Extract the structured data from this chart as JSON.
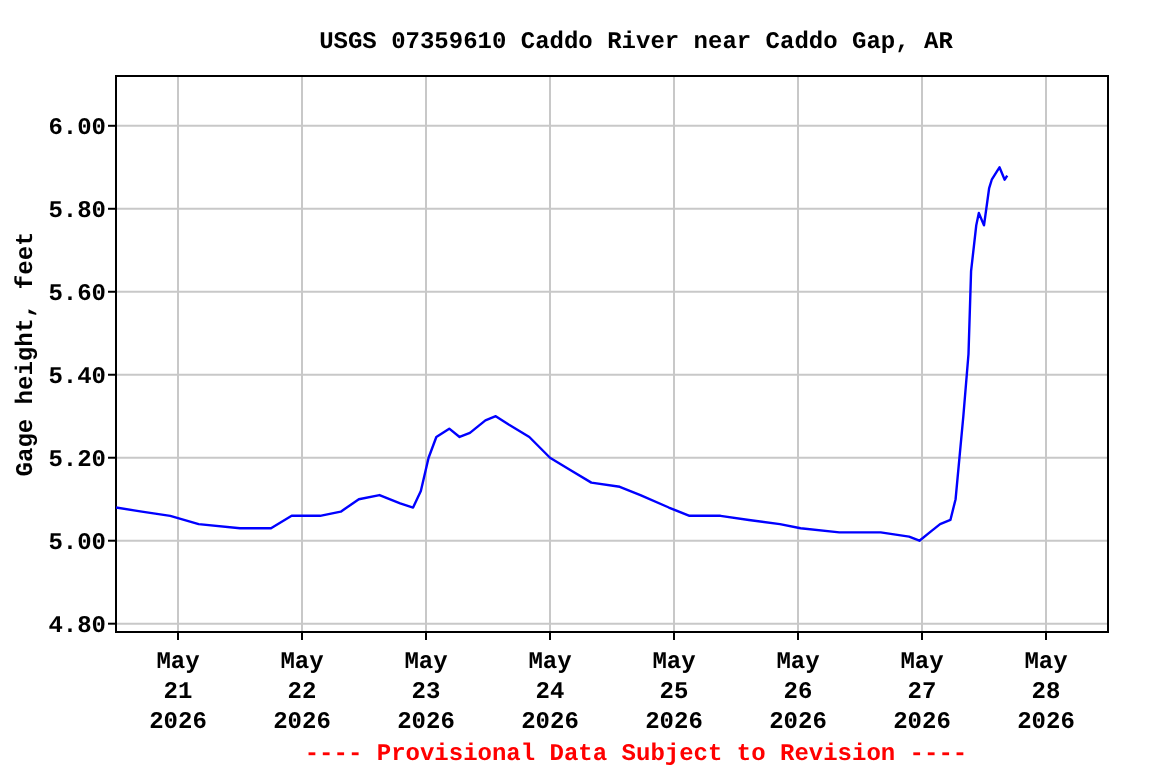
{
  "chart_data": {
    "type": "line",
    "title": "USGS 07359610 Caddo River near Caddo Gap, AR",
    "ylabel": "Gage height, feet",
    "annotations": [
      "---- Provisional Data Subject to Revision ----"
    ],
    "xlim": [
      "2026-05-20T12:00",
      "2026-05-28T12:00"
    ],
    "xticks": [
      {
        "value": "2026-05-21",
        "label": "May\n21\n2026"
      },
      {
        "value": "2026-05-22",
        "label": "May\n22\n2026"
      },
      {
        "value": "2026-05-23",
        "label": "May\n23\n2026"
      },
      {
        "value": "2026-05-24",
        "label": "May\n24\n2026"
      },
      {
        "value": "2026-05-25",
        "label": "May\n25\n2026"
      },
      {
        "value": "2026-05-26",
        "label": "May\n26\n2026"
      },
      {
        "value": "2026-05-27",
        "label": "May\n27\n2026"
      },
      {
        "value": "2026-05-28",
        "label": "May\n28\n2026"
      }
    ],
    "ylim": [
      4.78,
      6.12
    ],
    "yticks": [
      {
        "value": 4.8,
        "label": "4.80"
      },
      {
        "value": 5,
        "label": "5.00"
      },
      {
        "value": 5.2,
        "label": "5.20"
      },
      {
        "value": 5.4,
        "label": "5.40"
      },
      {
        "value": 5.6,
        "label": "5.60"
      },
      {
        "value": 5.8,
        "label": "5.80"
      },
      {
        "value": 6,
        "label": "6.00"
      }
    ],
    "grid": true,
    "marker": "none",
    "line_style": "solid",
    "x": [
      "2026-05-20T12:00",
      "2026-05-20T17:00",
      "2026-05-20T22:30",
      "2026-05-21T04:00",
      "2026-05-21T12:00",
      "2026-05-21T18:00",
      "2026-05-21T22:00",
      "2026-05-22T03:30",
      "2026-05-22T07:30",
      "2026-05-22T11:00",
      "2026-05-22T15:00",
      "2026-05-22T19:00",
      "2026-05-22T21:30",
      "2026-05-22T23:00",
      "2026-05-23T00:30",
      "2026-05-23T02:00",
      "2026-05-23T04:30",
      "2026-05-23T06:30",
      "2026-05-23T08:30",
      "2026-05-23T11:30",
      "2026-05-23T13:30",
      "2026-05-23T16:00",
      "2026-05-23T20:00",
      "2026-05-24T00:00",
      "2026-05-24T04:00",
      "2026-05-24T08:00",
      "2026-05-24T13:30",
      "2026-05-24T17:30",
      "2026-05-24T23:00",
      "2026-05-25T03:00",
      "2026-05-25T09:00",
      "2026-05-25T14:30",
      "2026-05-25T20:30",
      "2026-05-26T00:30",
      "2026-05-26T08:00",
      "2026-05-26T16:00",
      "2026-05-26T21:30",
      "2026-05-26T23:30",
      "2026-05-27T01:30",
      "2026-05-27T03:30",
      "2026-05-27T05:30",
      "2026-05-27T06:30",
      "2026-05-27T08:00",
      "2026-05-27T09:00",
      "2026-05-27T09:30",
      "2026-05-27T10:30",
      "2026-05-27T11:00",
      "2026-05-27T12:00",
      "2026-05-27T13:00",
      "2026-05-27T13:30",
      "2026-05-27T14:30",
      "2026-05-27T15:00",
      "2026-05-27T16:00",
      "2026-05-27T16:30"
    ],
    "series": [
      {
        "color": "#0000ff",
        "values": [
          5.08,
          5.07,
          5.06,
          5.04,
          5.03,
          5.03,
          5.06,
          5.06,
          5.07,
          5.1,
          5.11,
          5.09,
          5.08,
          5.12,
          5.2,
          5.25,
          5.27,
          5.25,
          5.26,
          5.29,
          5.3,
          5.28,
          5.25,
          5.2,
          5.17,
          5.14,
          5.13,
          5.11,
          5.08,
          5.06,
          5.06,
          5.05,
          5.04,
          5.03,
          5.02,
          5.02,
          5.01,
          5.0,
          5.02,
          5.04,
          5.05,
          5.1,
          5.3,
          5.45,
          5.65,
          5.76,
          5.79,
          5.76,
          5.85,
          5.87,
          5.89,
          5.9,
          5.87,
          5.88
        ]
      }
    ]
  }
}
